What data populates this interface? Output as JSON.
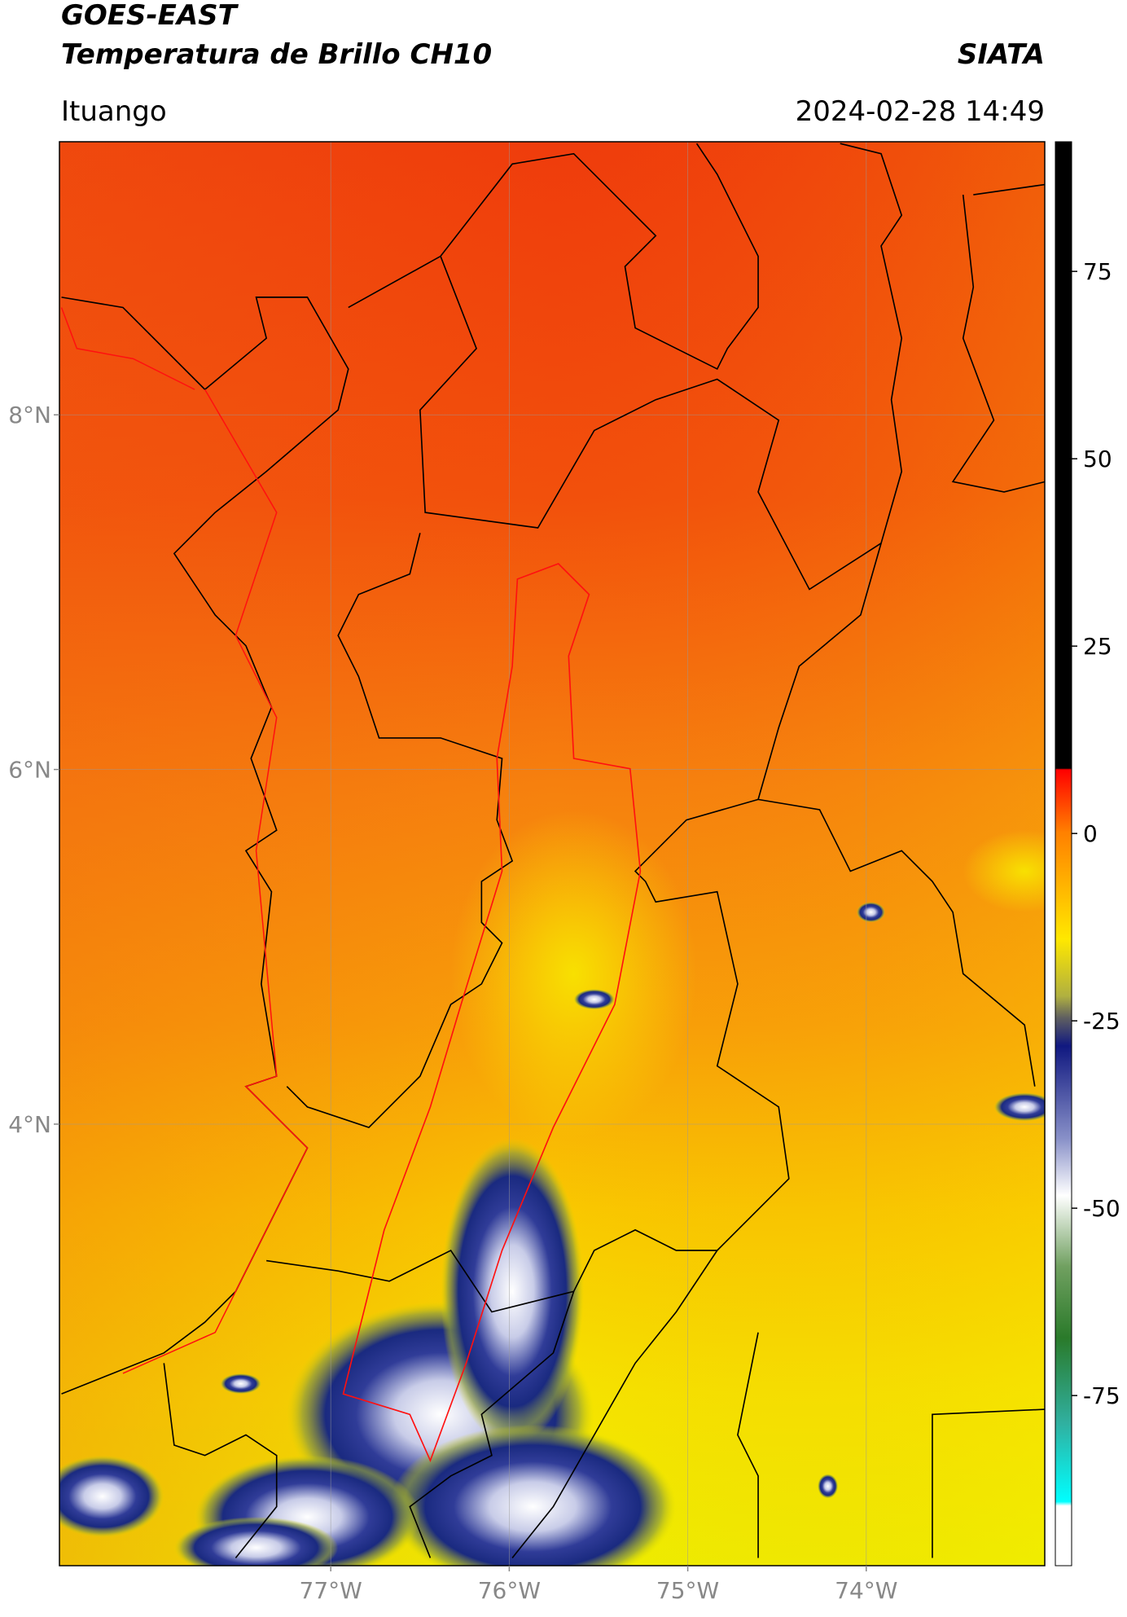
{
  "chart_data": {
    "type": "map",
    "title": "GOES-EAST",
    "subtitle": "Temperatura de Brillo CH10",
    "source": "SIATA",
    "location": "Ituango",
    "timestamp": "2024-02-28 14:49",
    "xlim": [
      -78.52,
      -73.0
    ],
    "ylim": [
      1.51,
      9.54
    ],
    "xticks": [
      {
        "value": -77,
        "label": "77°W"
      },
      {
        "value": -76,
        "label": "76°W"
      },
      {
        "value": -75,
        "label": "75°W"
      },
      {
        "value": -74,
        "label": "74°W"
      }
    ],
    "yticks": [
      {
        "value": 4,
        "label": "4°N"
      },
      {
        "value": 6,
        "label": "6°N"
      },
      {
        "value": 8,
        "label": "8°N"
      }
    ],
    "grid": true,
    "colorbar": {
      "clim": [
        -97.7,
        92.3
      ],
      "ticks": [
        -75,
        -50,
        -25,
        0,
        25,
        50,
        75
      ]
    }
  }
}
